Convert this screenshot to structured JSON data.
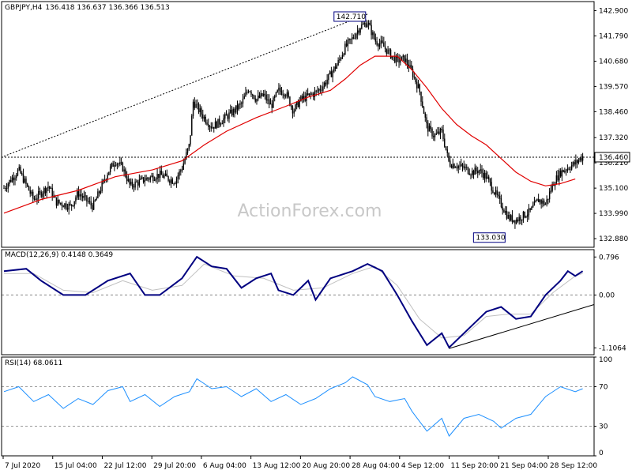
{
  "chart_data": [
    {
      "type": "candlestick",
      "symbol_header": "GBPJPY,H4",
      "ohlc_header": "136.418 136.637 136.366 136.513",
      "watermark": "ActionForex.com",
      "ylim": [
        132.5,
        143.3
      ],
      "y_ticks": [
        "142.900",
        "141.790",
        "140.680",
        "139.570",
        "138.460",
        "137.320",
        "136.210",
        "135.100",
        "133.990",
        "132.880"
      ],
      "current_price": "136.460",
      "annotations": {
        "high": "142.710",
        "low": "133.030"
      },
      "x_ticks": [
        "7 Jul 2020",
        "15 Jul 04:00",
        "22 Jul 12:00",
        "29 Jul 20:00",
        "6 Aug 04:00",
        "13 Aug 12:00",
        "20 Aug 20:00",
        "28 Aug 04:00",
        "4 Sep 12:00",
        "11 Sep 20:00",
        "21 Sep 04:00",
        "28 Sep 12:00"
      ],
      "trendline": "dotted resistance line from early Jul to 28 Aug high",
      "colors": {
        "price": "#000000",
        "ma": "#e00000",
        "current_line": "#000000"
      },
      "close_path": [
        [
          0,
          135.1
        ],
        [
          2,
          135.9
        ],
        [
          4,
          134.6
        ],
        [
          6,
          135.2
        ],
        [
          7,
          134.5
        ],
        [
          9,
          134.3
        ],
        [
          10,
          134.9
        ],
        [
          12,
          134.3
        ],
        [
          14,
          135.8
        ],
        [
          15,
          136.3
        ],
        [
          16,
          136.0
        ],
        [
          17,
          135.2
        ],
        [
          19,
          135.5
        ],
        [
          21,
          135.7
        ],
        [
          23,
          135.4
        ],
        [
          24,
          136.0
        ],
        [
          25,
          137.0
        ],
        [
          25.5,
          138.9
        ],
        [
          27,
          138.2
        ],
        [
          28,
          137.8
        ],
        [
          29,
          138.0
        ],
        [
          31,
          138.5
        ],
        [
          32,
          138.8
        ],
        [
          33,
          139.5
        ],
        [
          34,
          139.0
        ],
        [
          35,
          139.2
        ],
        [
          36,
          138.7
        ],
        [
          37,
          139.4
        ],
        [
          38,
          139.3
        ],
        [
          39,
          138.5
        ],
        [
          40,
          139.0
        ],
        [
          42,
          139.3
        ],
        [
          43,
          139.6
        ],
        [
          44,
          140.1
        ],
        [
          45,
          140.6
        ],
        [
          46,
          141.3
        ],
        [
          47,
          141.7
        ],
        [
          48,
          142.2
        ],
        [
          49,
          142.4
        ],
        [
          50,
          141.6
        ],
        [
          51,
          141.4
        ],
        [
          52,
          141.0
        ],
        [
          53,
          140.7
        ],
        [
          54,
          140.8
        ],
        [
          55,
          140.2
        ],
        [
          56,
          139.4
        ],
        [
          57,
          137.8
        ],
        [
          58,
          137.4
        ],
        [
          59,
          137.6
        ],
        [
          60,
          136.2
        ],
        [
          61,
          136.1
        ],
        [
          62,
          136.0
        ],
        [
          63,
          135.8
        ],
        [
          64,
          135.9
        ],
        [
          65,
          135.6
        ],
        [
          66,
          135.0
        ],
        [
          67,
          134.4
        ],
        [
          68,
          133.8
        ],
        [
          69,
          133.7
        ],
        [
          70,
          133.9
        ],
        [
          71,
          134.1
        ],
        [
          72,
          134.6
        ],
        [
          73,
          134.4
        ],
        [
          74,
          135.3
        ],
        [
          75,
          135.8
        ],
        [
          76,
          136.0
        ],
        [
          77,
          136.2
        ],
        [
          78,
          136.5
        ]
      ],
      "ma_path": [
        [
          0,
          134.0
        ],
        [
          5,
          134.6
        ],
        [
          10,
          135.0
        ],
        [
          15,
          135.6
        ],
        [
          20,
          135.9
        ],
        [
          24,
          136.3
        ],
        [
          27,
          137.0
        ],
        [
          30,
          137.6
        ],
        [
          34,
          138.2
        ],
        [
          38,
          138.7
        ],
        [
          41,
          139.1
        ],
        [
          44,
          139.4
        ],
        [
          46,
          139.9
        ],
        [
          48,
          140.5
        ],
        [
          50,
          140.9
        ],
        [
          53,
          140.9
        ],
        [
          55,
          140.3
        ],
        [
          57,
          139.5
        ],
        [
          59,
          138.6
        ],
        [
          61,
          137.9
        ],
        [
          63,
          137.4
        ],
        [
          65,
          137.0
        ],
        [
          67,
          136.4
        ],
        [
          69,
          135.8
        ],
        [
          71,
          135.4
        ],
        [
          73,
          135.2
        ],
        [
          75,
          135.3
        ],
        [
          77,
          135.5
        ]
      ]
    },
    {
      "type": "line",
      "title": "MACD(12,26,9) 0.4148 0.3649",
      "ylim": [
        -1.25,
        0.95
      ],
      "y_ticks": [
        "0.796",
        "0.00",
        "-1.1064"
      ],
      "series": [
        {
          "name": "MACD",
          "color": "#000080",
          "values": [
            [
              0,
              0.5
            ],
            [
              3,
              0.55
            ],
            [
              5,
              0.3
            ],
            [
              8,
              0.0
            ],
            [
              11,
              0.0
            ],
            [
              14,
              0.3
            ],
            [
              17,
              0.45
            ],
            [
              19,
              0.0
            ],
            [
              21,
              0.0
            ],
            [
              24,
              0.35
            ],
            [
              26,
              0.8
            ],
            [
              28,
              0.6
            ],
            [
              30,
              0.55
            ],
            [
              32,
              0.15
            ],
            [
              34,
              0.35
            ],
            [
              36,
              0.45
            ],
            [
              37,
              0.1
            ],
            [
              39,
              0.0
            ],
            [
              41,
              0.3
            ],
            [
              42,
              -0.1
            ],
            [
              44,
              0.35
            ],
            [
              47,
              0.5
            ],
            [
              49,
              0.65
            ],
            [
              51,
              0.5
            ],
            [
              53,
              0.0
            ],
            [
              55,
              -0.55
            ],
            [
              57,
              -1.05
            ],
            [
              59,
              -0.8
            ],
            [
              60,
              -1.1
            ],
            [
              62,
              -0.8
            ],
            [
              64,
              -0.5
            ],
            [
              65,
              -0.35
            ],
            [
              67,
              -0.25
            ],
            [
              69,
              -0.5
            ],
            [
              71,
              -0.45
            ],
            [
              73,
              0.0
            ],
            [
              75,
              0.3
            ],
            [
              76,
              0.5
            ],
            [
              77,
              0.4
            ],
            [
              78,
              0.5
            ]
          ]
        },
        {
          "name": "Signal",
          "color": "#c0c0c0",
          "values": [
            [
              0,
              0.45
            ],
            [
              4,
              0.45
            ],
            [
              8,
              0.1
            ],
            [
              12,
              0.05
            ],
            [
              16,
              0.3
            ],
            [
              20,
              0.1
            ],
            [
              24,
              0.2
            ],
            [
              27,
              0.65
            ],
            [
              31,
              0.4
            ],
            [
              35,
              0.35
            ],
            [
              39,
              0.1
            ],
            [
              43,
              0.15
            ],
            [
              47,
              0.45
            ],
            [
              50,
              0.6
            ],
            [
              53,
              0.2
            ],
            [
              56,
              -0.5
            ],
            [
              59,
              -0.9
            ],
            [
              62,
              -0.85
            ],
            [
              65,
              -0.45
            ],
            [
              68,
              -0.4
            ],
            [
              71,
              -0.4
            ],
            [
              74,
              0.05
            ],
            [
              77,
              0.4
            ],
            [
              78,
              0.45
            ]
          ]
        }
      ]
    },
    {
      "type": "line",
      "title": "RSI(14) 68.0611",
      "ylim": [
        0,
        100
      ],
      "y_ticks": [
        "100",
        "70",
        "30",
        "0"
      ],
      "series": [
        {
          "name": "RSI",
          "color": "#1e90ff",
          "values": [
            [
              0,
              65
            ],
            [
              2,
              70
            ],
            [
              4,
              55
            ],
            [
              6,
              62
            ],
            [
              8,
              48
            ],
            [
              10,
              58
            ],
            [
              12,
              52
            ],
            [
              14,
              66
            ],
            [
              16,
              70
            ],
            [
              17,
              55
            ],
            [
              19,
              62
            ],
            [
              21,
              50
            ],
            [
              23,
              60
            ],
            [
              25,
              65
            ],
            [
              26,
              78
            ],
            [
              28,
              68
            ],
            [
              30,
              70
            ],
            [
              32,
              60
            ],
            [
              34,
              68
            ],
            [
              36,
              55
            ],
            [
              38,
              62
            ],
            [
              40,
              52
            ],
            [
              42,
              58
            ],
            [
              44,
              68
            ],
            [
              46,
              74
            ],
            [
              47,
              80
            ],
            [
              49,
              72
            ],
            [
              50,
              60
            ],
            [
              52,
              55
            ],
            [
              54,
              58
            ],
            [
              55,
              45
            ],
            [
              57,
              25
            ],
            [
              59,
              38
            ],
            [
              60,
              20
            ],
            [
              62,
              38
            ],
            [
              64,
              42
            ],
            [
              66,
              35
            ],
            [
              67,
              28
            ],
            [
              69,
              38
            ],
            [
              71,
              42
            ],
            [
              73,
              60
            ],
            [
              75,
              70
            ],
            [
              77,
              65
            ],
            [
              78,
              68
            ]
          ]
        }
      ]
    }
  ]
}
